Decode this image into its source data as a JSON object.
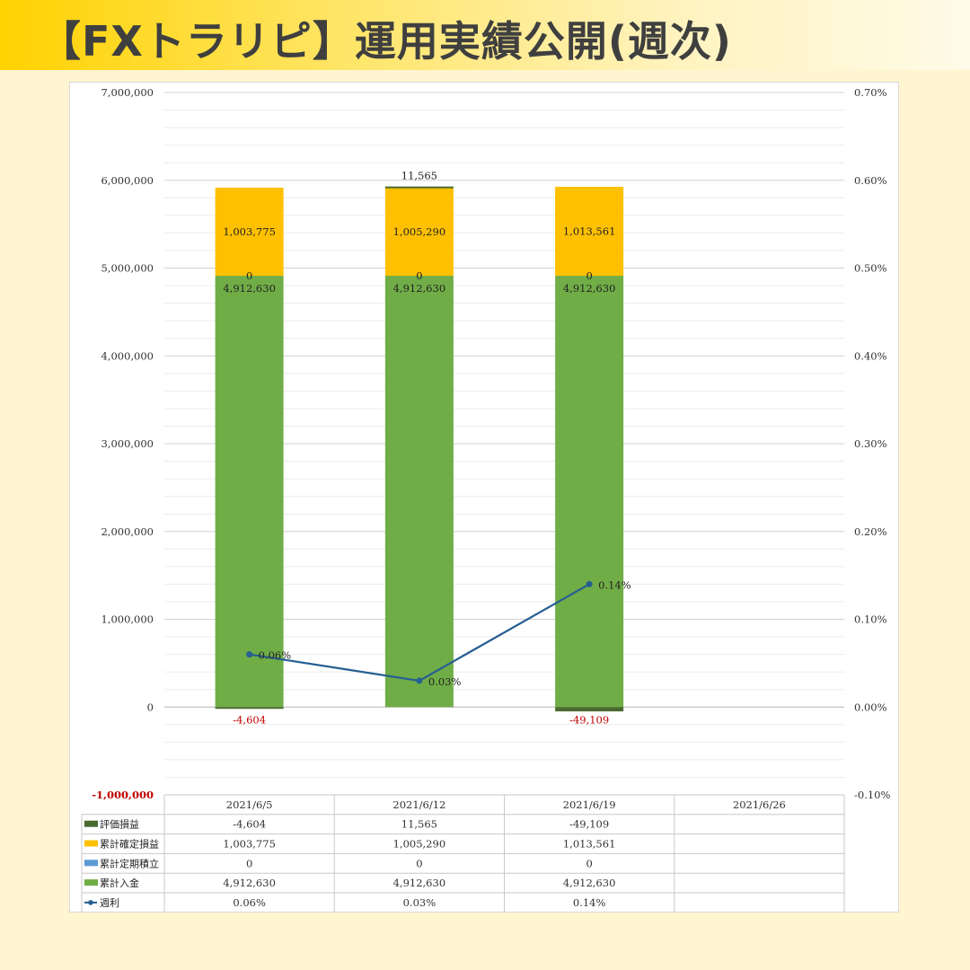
{
  "header": {
    "title": "【FXトラリピ】運用実績公開(週次)"
  },
  "colors": {
    "eval_pnl": "#4a6b2f",
    "realized": "#ffc000",
    "periodic": "#5b9bd5",
    "deposit": "#70ad47",
    "weekly_rate": "#255e91",
    "negative_label": "#c00000"
  },
  "chart_data": {
    "type": "bar",
    "stacked": true,
    "categories": [
      "2021/6/5",
      "2021/6/12",
      "2021/6/19",
      "2021/6/26"
    ],
    "ylim": [
      -1000000,
      7000000
    ],
    "y_ticks": [
      "7,000,000",
      "6,000,000",
      "5,000,000",
      "4,000,000",
      "3,000,000",
      "2,000,000",
      "1,000,000",
      "0",
      "-1,000,000"
    ],
    "y2lim": [
      -0.1,
      0.7
    ],
    "y2_ticks": [
      "0.70%",
      "0.60%",
      "0.50%",
      "0.40%",
      "0.30%",
      "0.20%",
      "0.10%",
      "0.00%",
      "-0.10%"
    ],
    "grid": true,
    "legend_position": "data-table-left",
    "series": [
      {
        "name": "評価損益",
        "type": "bar",
        "values": [
          -4604,
          11565,
          -49109,
          null
        ],
        "labels": [
          "-4,604",
          "11,565",
          "-49,109",
          ""
        ]
      },
      {
        "name": "累計確定損益",
        "type": "bar",
        "values": [
          1003775,
          1005290,
          1013561,
          null
        ],
        "labels": [
          "1,003,775",
          "1,005,290",
          "1,013,561",
          ""
        ]
      },
      {
        "name": "累計定期積立",
        "type": "bar",
        "values": [
          0,
          0,
          0,
          null
        ],
        "labels": [
          "0",
          "0",
          "0",
          ""
        ]
      },
      {
        "name": "累計入金",
        "type": "bar",
        "values": [
          4912630,
          4912630,
          4912630,
          null
        ],
        "labels": [
          "4,912,630",
          "4,912,630",
          "4,912,630",
          ""
        ]
      },
      {
        "name": "週利",
        "type": "line",
        "axis": "secondary",
        "values": [
          0.06,
          0.03,
          0.14,
          null
        ],
        "labels": [
          "0.06%",
          "0.03%",
          "0.14%",
          ""
        ]
      }
    ]
  }
}
